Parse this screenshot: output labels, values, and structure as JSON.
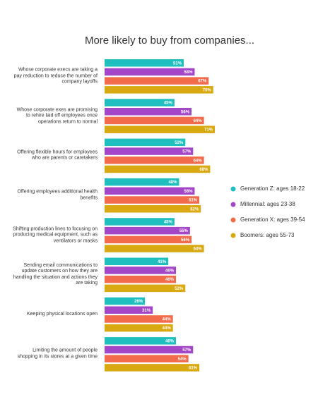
{
  "chart_data": {
    "type": "bar",
    "orientation": "horizontal",
    "title": "More likely to buy from companies...",
    "categories": [
      "Whose corporate execs are taking a pay reduction to reduce the number of company layoffs",
      "Whose corporate exes are promising to rehire laid off employees once operations return to normal",
      "Offering flexible hours for employees who are parents or caretakers",
      "Offering employees additional health benefits",
      "Shifting production lines to focusing on producing medical equipment, such as ventilators or masks",
      "Sending email communications to update customers on how they are handling the situation and actions they are taking",
      "Keeping physical locations open",
      "Limiting the amount of people shopping in its stores at a given time"
    ],
    "series": [
      {
        "name": "Generation Z: ages 18-22",
        "color": "#1fbfbf",
        "values": [
          51,
          45,
          52,
          48,
          45,
          41,
          26,
          46
        ],
        "value_labels": [
          "51%",
          "45%",
          "52%",
          "48%",
          "45%",
          "41%",
          "26%",
          "46%"
        ]
      },
      {
        "name": "Millennial: ages 23-38",
        "color": "#a346c8",
        "values": [
          58,
          56,
          57,
          58,
          55,
          46,
          31,
          57
        ],
        "value_labels": [
          "58%",
          "56%",
          "57%",
          "58%",
          "55%",
          "46%",
          "31%",
          "57%"
        ]
      },
      {
        "name": "Generation X: ages 39-54",
        "color": "#f26b4a",
        "values": [
          67,
          64,
          64,
          61,
          56,
          46,
          44,
          54
        ],
        "value_labels": [
          "67%",
          "64%",
          "64%",
          "61%",
          "56%",
          "46%",
          "44%",
          "54%"
        ]
      },
      {
        "name": "Boomers: ages 55-73",
        "color": "#d8a910",
        "values": [
          70,
          71,
          68,
          62,
          64,
          52,
          44,
          61
        ],
        "value_labels": [
          "70%",
          "71%",
          "68%",
          "62%",
          "64%",
          "52%",
          "44%",
          "61%"
        ]
      }
    ],
    "legend": "right"
  }
}
